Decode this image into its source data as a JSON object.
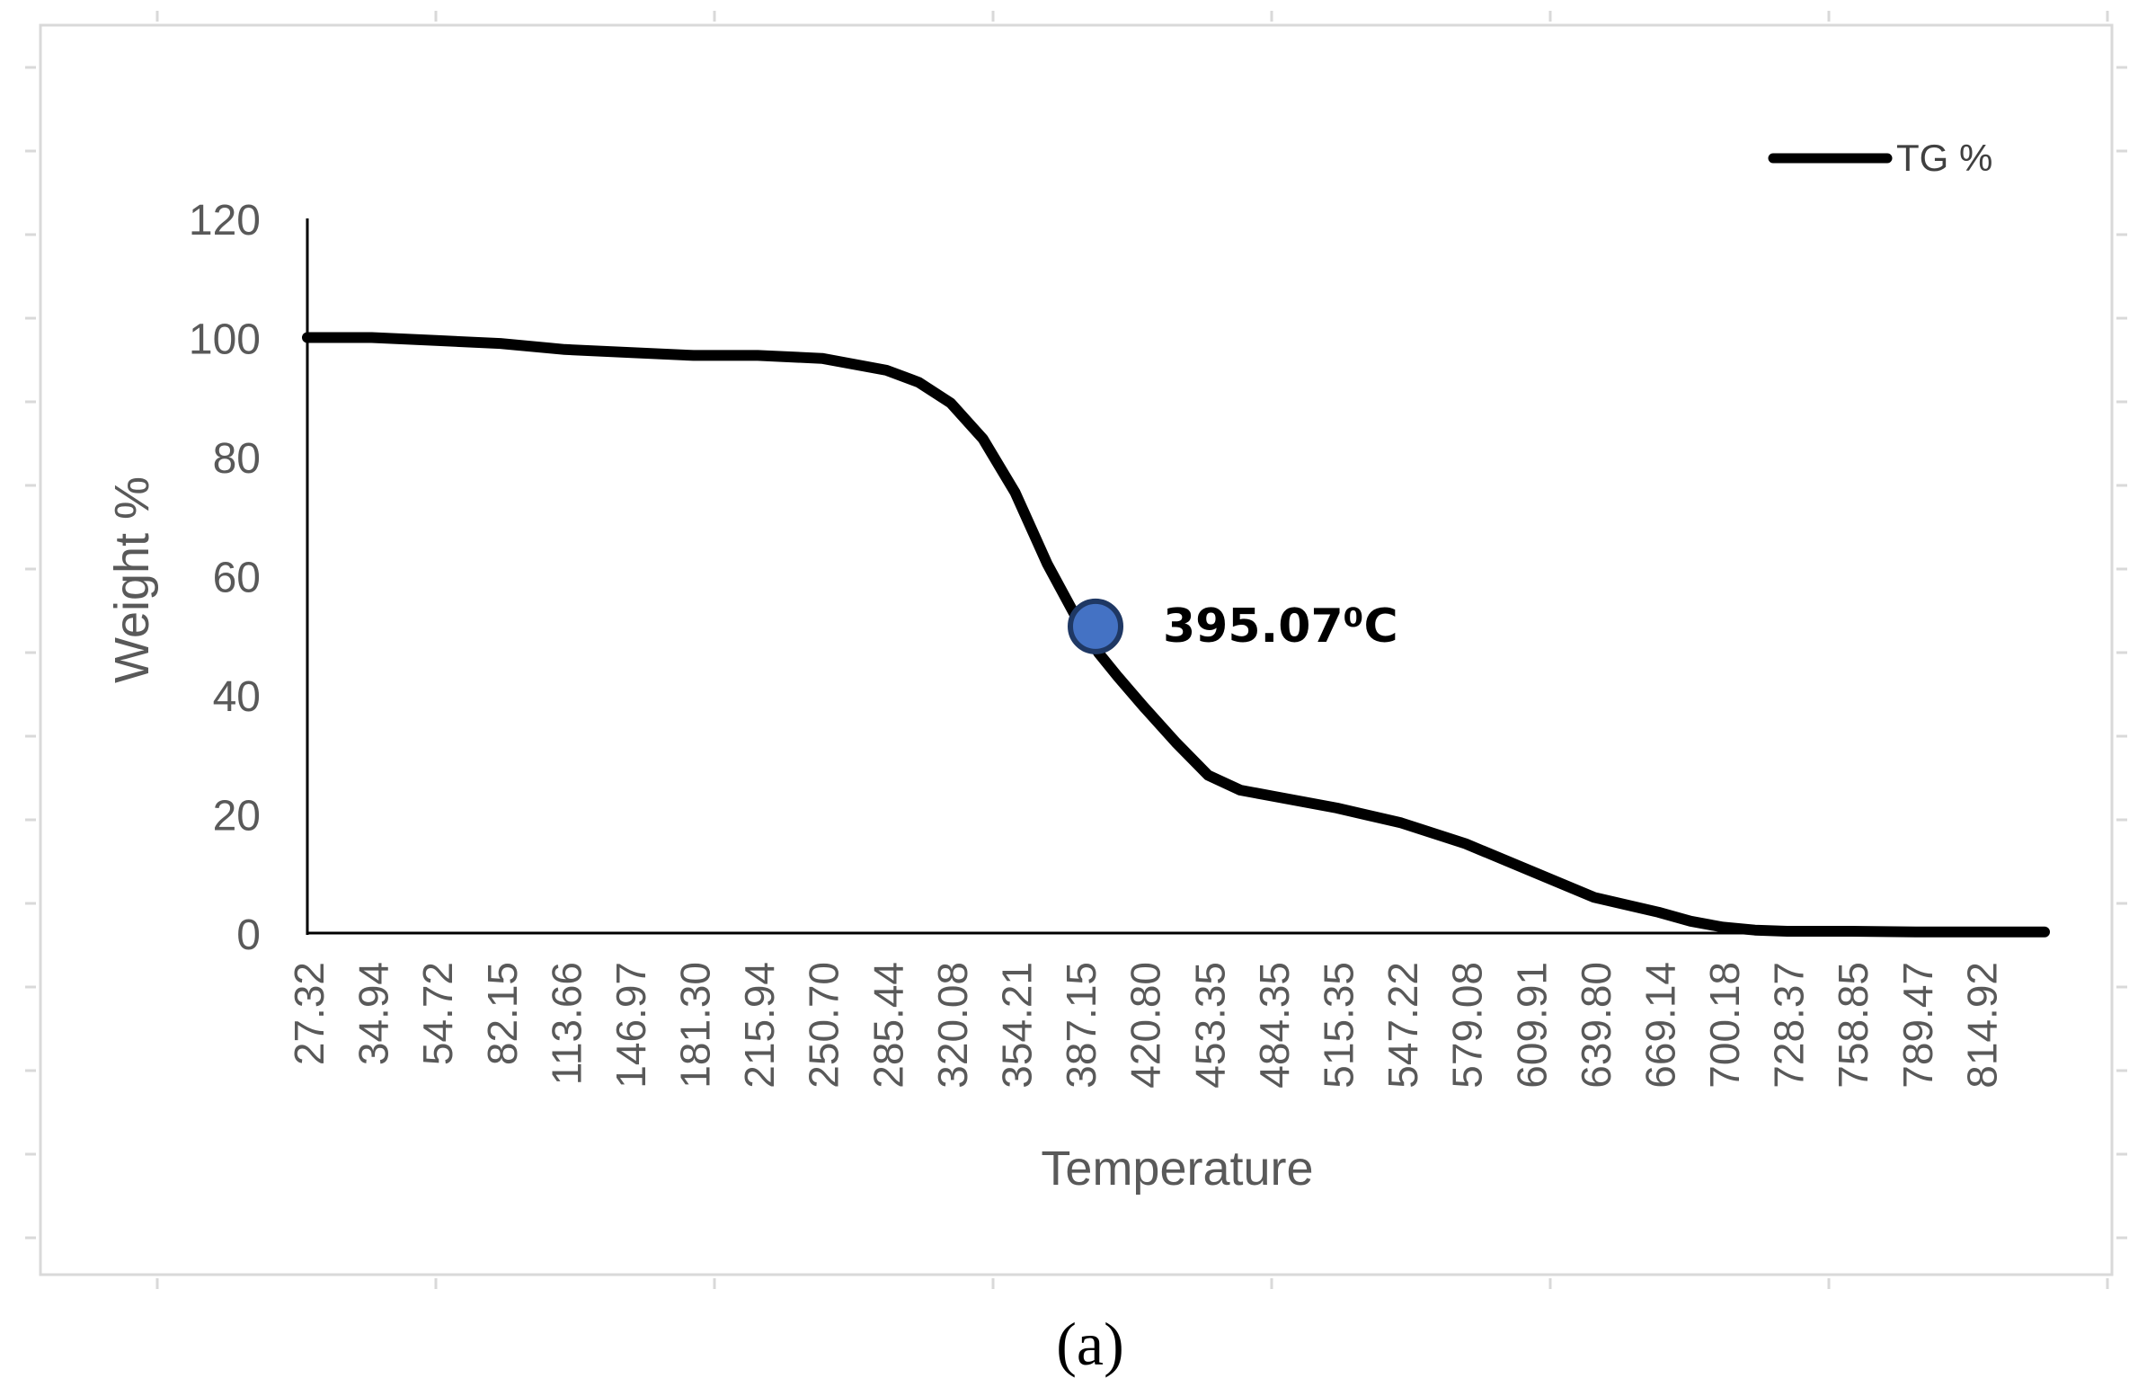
{
  "chart_data": {
    "type": "line",
    "xlabel": "Temperature",
    "ylabel": "Weight %",
    "ylim": [
      0,
      120
    ],
    "yticks": [
      0,
      20,
      40,
      60,
      80,
      100,
      120
    ],
    "categories": [
      "27.32",
      "34.94",
      "54.72",
      "82.15",
      "113.66",
      "146.97",
      "181.30",
      "215.94",
      "250.70",
      "285.44",
      "320.08",
      "354.21",
      "387.15",
      "420.80",
      "453.35",
      "484.35",
      "515.35",
      "547.22",
      "579.08",
      "609.91",
      "639.80",
      "669.14",
      "700.18",
      "728.37",
      "758.85",
      "789.47",
      "814.92"
    ],
    "grid": false,
    "legend": {
      "position": "top-right",
      "entries": [
        "TG %"
      ]
    },
    "series": [
      {
        "name": "TG %",
        "color": "#000000",
        "x": [
          0,
          1,
          2,
          3,
          4,
          5,
          6,
          7,
          8,
          9,
          9.5,
          10,
          10.5,
          11,
          11.5,
          12,
          12.3,
          12.6,
          13,
          13.5,
          14,
          14.5,
          15,
          16,
          17,
          18,
          19,
          20,
          21,
          21.5,
          22,
          22.5,
          23,
          24,
          25,
          26,
          27
        ],
        "values": [
          100,
          100,
          99.5,
          99,
          98,
          97.5,
          97,
          97,
          96.5,
          94.5,
          92.5,
          89,
          83,
          74,
          62,
          52,
          47,
          43,
          38,
          32,
          26.5,
          24,
          23,
          21,
          18.5,
          15,
          10.5,
          6,
          3.5,
          2,
          1,
          0.5,
          0.3,
          0.3,
          0.2,
          0.2,
          0.2
        ]
      }
    ],
    "annotations": [
      {
        "text": "395.07⁰C",
        "x": 12.25,
        "y": 51.5,
        "marker_color": "#4472C4"
      }
    ]
  },
  "caption": "(a)"
}
